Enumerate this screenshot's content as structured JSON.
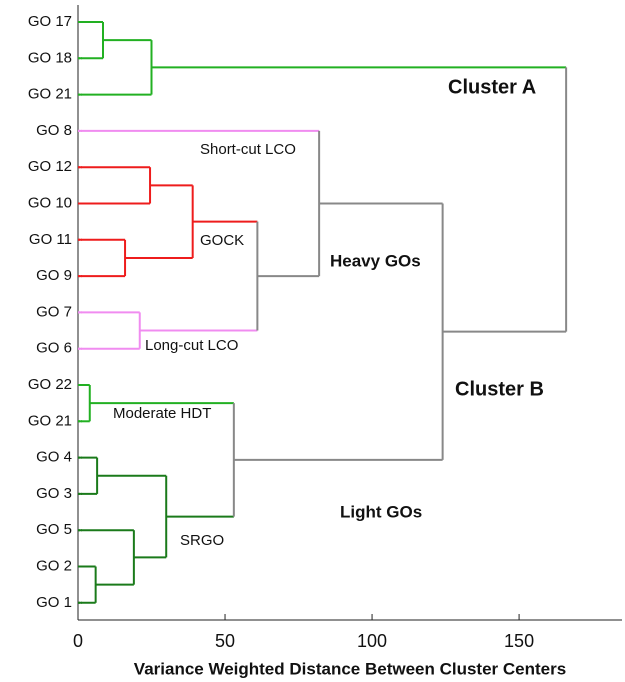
{
  "chart_data": {
    "type": "dendrogram",
    "xlabel": "Variance Weighted Distance Between Cluster Centers",
    "xlim": [
      0,
      185
    ],
    "xticks": [
      0,
      50,
      100,
      150
    ],
    "leaves": [
      {
        "label": "GO 17",
        "color": "#22b022"
      },
      {
        "label": "GO 18",
        "color": "#22b022"
      },
      {
        "label": "GO 21",
        "color": "#22b022"
      },
      {
        "label": "GO 8",
        "color": "#f08cf0"
      },
      {
        "label": "GO 12",
        "color": "#ee1c1c"
      },
      {
        "label": "GO 10",
        "color": "#ee1c1c"
      },
      {
        "label": "GO 11",
        "color": "#ee1c1c"
      },
      {
        "label": "GO 9",
        "color": "#ee1c1c"
      },
      {
        "label": "GO 7",
        "color": "#f08cf0"
      },
      {
        "label": "GO 6",
        "color": "#f08cf0"
      },
      {
        "label": "GO 22",
        "color": "#22b022"
      },
      {
        "label": "GO 21",
        "color": "#22b022"
      },
      {
        "label": "GO 4",
        "color": "#1a7a1a"
      },
      {
        "label": "GO 3",
        "color": "#1a7a1a"
      },
      {
        "label": "GO 5",
        "color": "#1a7a1a"
      },
      {
        "label": "GO 2",
        "color": "#1a7a1a"
      },
      {
        "label": "GO 1",
        "color": "#1a7a1a"
      }
    ],
    "merges": [
      {
        "children": [
          0,
          1
        ],
        "height": 8.5,
        "color": "#22b022"
      },
      {
        "children": [
          17,
          2
        ],
        "height": 25,
        "color": "#22b022"
      },
      {
        "children": [
          4,
          5
        ],
        "height": 24.5,
        "color": "#ee1c1c"
      },
      {
        "children": [
          6,
          7
        ],
        "height": 16,
        "color": "#ee1c1c"
      },
      {
        "children": [
          19,
          20
        ],
        "height": 39,
        "color": "#ee1c1c"
      },
      {
        "children": [
          8,
          9
        ],
        "height": 21,
        "color": "#f08cf0"
      },
      {
        "children": [
          21,
          22
        ],
        "height": 61,
        "color": "#888888"
      },
      {
        "children": [
          3,
          23
        ],
        "height": 82,
        "color": "#888888"
      },
      {
        "children": [
          10,
          11
        ],
        "height": 4,
        "color": "#22b022"
      },
      {
        "children": [
          12,
          13
        ],
        "height": 6.5,
        "color": "#1a7a1a"
      },
      {
        "children": [
          15,
          16
        ],
        "height": 6,
        "color": "#1a7a1a"
      },
      {
        "children": [
          14,
          27
        ],
        "height": 19,
        "color": "#1a7a1a"
      },
      {
        "children": [
          26,
          28
        ],
        "height": 30,
        "color": "#1a7a1a"
      },
      {
        "children": [
          25,
          29
        ],
        "height": 53,
        "color": "#888888"
      },
      {
        "children": [
          24,
          30
        ],
        "height": 124,
        "color": "#888888"
      },
      {
        "children": [
          18,
          31
        ],
        "height": 166,
        "color": "#888888"
      }
    ],
    "annotations": [
      "Cluster A",
      "Short-cut LCO",
      "GOCK",
      "Heavy GOs",
      "Long-cut LCO",
      "Cluster B",
      "Moderate HDT",
      "Light GOs",
      "SRGO"
    ]
  }
}
